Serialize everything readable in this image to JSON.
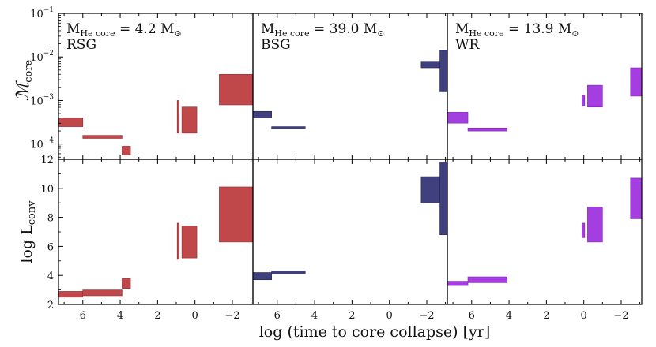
{
  "chart_data": {
    "type": "bar",
    "description_axes": {
      "xlabel": "log (time to core collapse) [yr]",
      "xlim": [
        7.3,
        -3.1
      ],
      "xticks": [
        6,
        4,
        2,
        0,
        -2
      ],
      "top_ylabel": "𝓜core",
      "top_ylim_log10": [
        -4.35,
        -1
      ],
      "top_ytick_labels": [
        {
          "v": -4,
          "base": "10",
          "exp": "−4"
        },
        {
          "v": -3,
          "base": "10",
          "exp": "−3"
        },
        {
          "v": -2,
          "base": "10",
          "exp": "−2"
        },
        {
          "v": -1,
          "base": "10",
          "exp": "−1"
        }
      ],
      "bottom_ylabel": "log Lconv",
      "bottom_ylim": [
        2,
        12
      ],
      "bottom_yticks": [
        2,
        4,
        6,
        8,
        10,
        12
      ]
    },
    "panels": [
      {
        "label": "RSG",
        "mass_text": "M",
        "mass_sub": "He core",
        "mass_value": " = 4.2 M",
        "mass_sun": "⊙",
        "color": "#c0474a",
        "edge": "#8e2f33",
        "top_rects": [
          {
            "t1": 7.3,
            "t2": 6.0,
            "lo": -3.6,
            "hi": -3.4
          },
          {
            "t1": 6.0,
            "t2": 3.9,
            "lo": -3.87,
            "hi": -3.8
          },
          {
            "t1": 3.9,
            "t2": 3.45,
            "lo": -4.25,
            "hi": -4.05
          },
          {
            "t1": 0.95,
            "t2": 0.85,
            "lo": -3.75,
            "hi": -3.0
          },
          {
            "t1": 0.7,
            "t2": -0.1,
            "lo": -3.75,
            "hi": -3.15
          },
          {
            "t1": -1.3,
            "t2": -3.1,
            "lo": -3.1,
            "hi": -2.4
          }
        ],
        "bottom_rects": [
          {
            "t1": 7.3,
            "t2": 6.0,
            "lo": 2.5,
            "hi": 2.9
          },
          {
            "t1": 6.0,
            "t2": 3.9,
            "lo": 2.6,
            "hi": 3.0
          },
          {
            "t1": 3.9,
            "t2": 3.45,
            "lo": 3.1,
            "hi": 3.8
          },
          {
            "t1": 0.95,
            "t2": 0.85,
            "lo": 5.1,
            "hi": 7.6
          },
          {
            "t1": 0.7,
            "t2": -0.1,
            "lo": 5.2,
            "hi": 7.4
          },
          {
            "t1": -1.3,
            "t2": -3.1,
            "lo": 6.3,
            "hi": 10.1
          }
        ]
      },
      {
        "label": "BSG",
        "mass_text": "M",
        "mass_sub": "He core",
        "mass_value": " = 39.0 M",
        "mass_sun": "⊙",
        "color": "#40407f",
        "edge": "#23234f",
        "top_rects": [
          {
            "t1": 7.3,
            "t2": 6.3,
            "lo": -3.4,
            "hi": -3.25
          },
          {
            "t1": 6.3,
            "t2": 4.5,
            "lo": -3.65,
            "hi": -3.6
          },
          {
            "t1": -1.7,
            "t2": -2.7,
            "lo": -2.25,
            "hi": -2.1
          },
          {
            "t1": -2.7,
            "t2": -3.1,
            "lo": -2.8,
            "hi": -1.85
          }
        ],
        "bottom_rects": [
          {
            "t1": 7.3,
            "t2": 6.3,
            "lo": 3.7,
            "hi": 4.2
          },
          {
            "t1": 6.3,
            "t2": 4.5,
            "lo": 4.1,
            "hi": 4.3
          },
          {
            "t1": -1.7,
            "t2": -2.7,
            "lo": 9.0,
            "hi": 10.8
          },
          {
            "t1": -2.7,
            "t2": -3.1,
            "lo": 6.8,
            "hi": 11.8
          }
        ]
      },
      {
        "label": "WR",
        "mass_text": "M",
        "mass_sub": "He core",
        "mass_value": " = 13.9 M",
        "mass_sun": "⊙",
        "color": "#a43ee0",
        "edge": "#7a24ad",
        "top_rects": [
          {
            "t1": 7.3,
            "t2": 6.2,
            "lo": -3.52,
            "hi": -3.27
          },
          {
            "t1": 6.2,
            "t2": 4.1,
            "lo": -3.7,
            "hi": -3.63
          },
          {
            "t1": 0.1,
            "t2": -0.05,
            "lo": -3.12,
            "hi": -2.88
          },
          {
            "t1": -0.2,
            "t2": -1.0,
            "lo": -3.15,
            "hi": -2.65
          },
          {
            "t1": -2.5,
            "t2": -3.1,
            "lo": -2.9,
            "hi": -2.25
          }
        ],
        "bottom_rects": [
          {
            "t1": 7.3,
            "t2": 6.2,
            "lo": 3.3,
            "hi": 3.6
          },
          {
            "t1": 6.2,
            "t2": 4.1,
            "lo": 3.5,
            "hi": 3.9
          },
          {
            "t1": 0.1,
            "t2": -0.05,
            "lo": 6.6,
            "hi": 7.6
          },
          {
            "t1": -0.2,
            "t2": -1.0,
            "lo": 6.3,
            "hi": 8.7
          },
          {
            "t1": -2.5,
            "t2": -3.1,
            "lo": 7.9,
            "hi": 10.7
          }
        ]
      }
    ]
  }
}
